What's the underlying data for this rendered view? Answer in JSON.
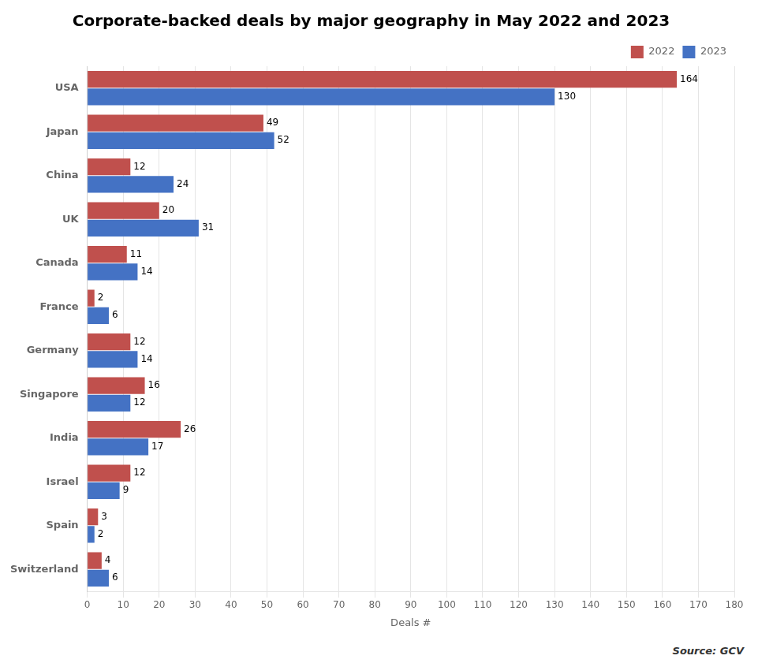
{
  "chart_data": {
    "type": "bar",
    "orientation": "horizontal",
    "title": "Corporate-backed deals by major geography in May 2022 and 2023",
    "xlabel": "Deals #",
    "categories": [
      "USA",
      "Japan",
      "China",
      "UK",
      "Canada",
      "France",
      "Germany",
      "Singapore",
      "India",
      "Israel",
      "Spain",
      "Switzerland"
    ],
    "series": [
      {
        "name": "2022",
        "color": "#c0504d",
        "values": [
          164,
          49,
          12,
          20,
          11,
          2,
          12,
          16,
          26,
          12,
          3,
          4
        ]
      },
      {
        "name": "2023",
        "color": "#4472c4",
        "values": [
          130,
          52,
          24,
          31,
          14,
          6,
          14,
          12,
          17,
          9,
          2,
          6
        ]
      }
    ],
    "xlim": [
      0,
      180
    ],
    "xticks": [
      0,
      10,
      20,
      30,
      40,
      50,
      60,
      70,
      80,
      90,
      100,
      110,
      120,
      130,
      140,
      150,
      160,
      170,
      180
    ],
    "grid": true,
    "legend": "upper right",
    "data_labels": true,
    "annotations": [
      "Source: GCV"
    ]
  }
}
